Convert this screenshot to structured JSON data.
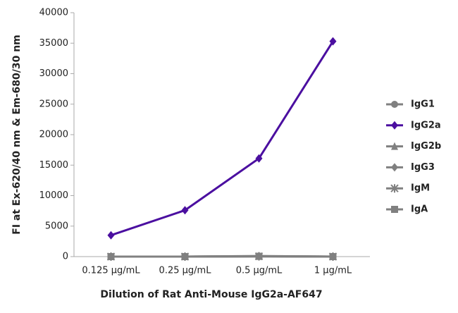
{
  "chart_data": {
    "type": "line",
    "y_label": "FI at Ex-620/40 nm & Em-680/30 nm",
    "x_label": "Dilution of Rat Anti-Mouse IgG2a-AF647",
    "categories": [
      "0.125 µg/mL",
      "0.25 µg/mL",
      "0.5 µg/mL",
      "1 µg/mL"
    ],
    "ylim": [
      0,
      40000
    ],
    "yticks": [
      0,
      5000,
      10000,
      15000,
      20000,
      25000,
      30000,
      35000,
      40000
    ],
    "grid": false,
    "legend": "right",
    "series": [
      {
        "name": "IgG1",
        "color": "#808080",
        "marker": "circle",
        "values": [
          0,
          0,
          100,
          0
        ]
      },
      {
        "name": "IgG2a",
        "color": "#4b0fa0",
        "marker": "diamond",
        "values": [
          3500,
          7600,
          16100,
          35300
        ]
      },
      {
        "name": "IgG2b",
        "color": "#808080",
        "marker": "triangle",
        "values": [
          0,
          0,
          50,
          0
        ]
      },
      {
        "name": "IgG3",
        "color": "#808080",
        "marker": "diamond",
        "values": [
          0,
          0,
          50,
          0
        ]
      },
      {
        "name": "IgM",
        "color": "#808080",
        "marker": "star",
        "values": [
          0,
          0,
          50,
          0
        ]
      },
      {
        "name": "IgA",
        "color": "#808080",
        "marker": "square",
        "values": [
          0,
          0,
          50,
          0
        ]
      }
    ]
  }
}
